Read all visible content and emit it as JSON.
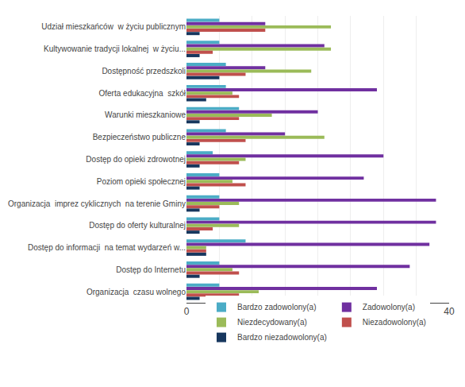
{
  "chart_data": {
    "type": "bar",
    "orientation": "horizontal",
    "categories": [
      "Udział mieszkańców  w życiu publicznym",
      "Kultywowanie tradycji lokalnej  w życiu...",
      "Dostępność przedszkoli",
      "Oferta edukacyjna  szkół",
      "Warunki mieszkaniowe",
      "Bezpieczeństwo publiczne",
      "Dostęp do opieki zdrowotnej",
      "Poziom opieki społecznej",
      "Organizacja  imprez cyklicznych  na terenie Gminy",
      "Dostęp do oferty kulturalnej",
      "Dostęp do informacji  na temat wydarzeń w...",
      "Dostęp do Internetu",
      "Organizacja  czasu wolnego"
    ],
    "series": [
      {
        "name": "Bardzo zadowolony(a)",
        "color": "#4BACC6",
        "values": [
          5,
          5,
          6,
          6,
          8,
          6,
          4,
          5,
          5,
          5,
          9,
          5,
          5
        ]
      },
      {
        "name": "Zadowolony(a)",
        "color": "#7030A0",
        "values": [
          12,
          21,
          12,
          29,
          20,
          15,
          30,
          27,
          38,
          38,
          37,
          34,
          29
        ]
      },
      {
        "name": "Niezdecydowany(a)",
        "color": "#9BBB59",
        "values": [
          22,
          22,
          19,
          7,
          13,
          21,
          9,
          7,
          8,
          8,
          3,
          7,
          11
        ]
      },
      {
        "name": "Niezadowolony(a)",
        "color": "#C0504D",
        "values": [
          12,
          4,
          9,
          8,
          8,
          9,
          8,
          9,
          5,
          4,
          3,
          8,
          8
        ]
      },
      {
        "name": "Bardzo niezadowolony(a)",
        "color": "#17375E",
        "values": [
          2,
          2,
          5,
          3,
          2,
          2,
          2,
          2,
          2,
          2,
          3,
          2,
          2
        ]
      }
    ],
    "xlim": [
      0,
      40
    ],
    "xticks": [
      0,
      5,
      10,
      15,
      20,
      25,
      30,
      35,
      40
    ],
    "grid": true,
    "legend": "bottom"
  }
}
